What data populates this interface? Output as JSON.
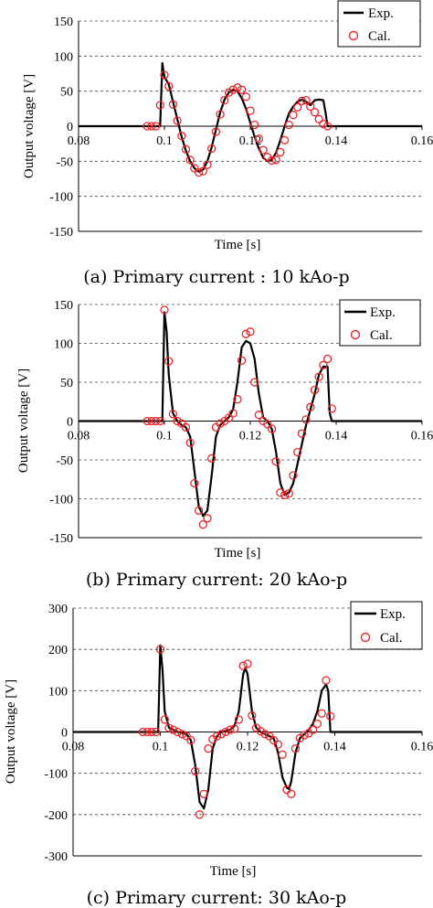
{
  "chart_data": [
    {
      "type": "line",
      "caption": "(a) Primary current : 10 kAo-p",
      "xlabel": "Time [s]",
      "ylabel": "Output voltage [V]",
      "xlim": [
        0.08,
        0.16
      ],
      "ylim": [
        -150,
        150
      ],
      "xticks": [
        0.08,
        0.1,
        0.12,
        0.14,
        0.16
      ],
      "xtick_labels": [
        "0.08",
        "0.1",
        "0.12",
        "0.14",
        "0.16"
      ],
      "yticks": [
        -150,
        -100,
        -50,
        0,
        50,
        100,
        150
      ],
      "ytick_labels": [
        "-150",
        "-100",
        "-50",
        "0",
        "50",
        "100",
        "150"
      ],
      "grid": "horizontal dashed",
      "legend_position": "top-right",
      "series": [
        {
          "name": "Exp.",
          "style": "line",
          "color": "#000000",
          "x": [
            0.08,
            0.099,
            0.0995,
            0.1,
            0.101,
            0.102,
            0.103,
            0.104,
            0.105,
            0.106,
            0.107,
            0.108,
            0.109,
            0.11,
            0.111,
            0.112,
            0.113,
            0.114,
            0.115,
            0.116,
            0.117,
            0.118,
            0.119,
            0.12,
            0.121,
            0.122,
            0.123,
            0.124,
            0.125,
            0.126,
            0.127,
            0.128,
            0.129,
            0.13,
            0.131,
            0.132,
            0.133,
            0.134,
            0.135,
            0.136,
            0.137,
            0.1375,
            0.138,
            0.16
          ],
          "y": [
            0,
            0,
            90,
            70,
            60,
            35,
            10,
            -15,
            -35,
            -50,
            -60,
            -65,
            -62,
            -50,
            -30,
            -5,
            20,
            38,
            48,
            52,
            50,
            40,
            25,
            5,
            -15,
            -32,
            -45,
            -50,
            -48,
            -38,
            -20,
            0,
            18,
            28,
            35,
            38,
            35,
            30,
            37,
            38,
            37,
            20,
            0,
            0
          ]
        },
        {
          "name": "Cal.",
          "style": "markers",
          "color": "#e8262a",
          "x": [
            0.096,
            0.097,
            0.098,
            0.099,
            0.1,
            0.101,
            0.102,
            0.103,
            0.104,
            0.105,
            0.106,
            0.107,
            0.108,
            0.109,
            0.11,
            0.111,
            0.112,
            0.113,
            0.114,
            0.115,
            0.116,
            0.117,
            0.118,
            0.119,
            0.12,
            0.121,
            0.122,
            0.123,
            0.124,
            0.125,
            0.126,
            0.127,
            0.128,
            0.129,
            0.13,
            0.131,
            0.132,
            0.133,
            0.134,
            0.135,
            0.136,
            0.137,
            0.138
          ],
          "y": [
            0,
            0,
            0,
            30,
            73,
            57,
            31,
            8,
            -14,
            -33,
            -48,
            -60,
            -66,
            -64,
            -55,
            -32,
            -8,
            17,
            37,
            48,
            52,
            55,
            52,
            42,
            22,
            2,
            -18,
            -34,
            -44,
            -49,
            -48,
            -37,
            -20,
            2,
            16,
            27,
            36,
            37,
            28,
            20,
            10,
            3,
            0
          ]
        }
      ]
    },
    {
      "type": "line",
      "caption": "(b) Primary current: 20 kAo-p",
      "xlabel": "Time [s]",
      "ylabel": "Output voltage [V]",
      "xlim": [
        0.08,
        0.16
      ],
      "ylim": [
        -150,
        150
      ],
      "xticks": [
        0.08,
        0.1,
        0.12,
        0.14,
        0.16
      ],
      "xtick_labels": [
        "0.08",
        "0.1",
        "0.12",
        "0.14",
        "0.16"
      ],
      "yticks": [
        -150,
        -100,
        -50,
        0,
        50,
        100,
        150
      ],
      "ytick_labels": [
        "-150",
        "-100",
        "-50",
        "0",
        "50",
        "100",
        "150"
      ],
      "grid": "horizontal dashed",
      "legend_position": "top-right",
      "series": [
        {
          "name": "Exp.",
          "style": "line",
          "color": "#000000",
          "x": [
            0.08,
            0.0995,
            0.1,
            0.1005,
            0.101,
            0.102,
            0.103,
            0.104,
            0.105,
            0.106,
            0.107,
            0.108,
            0.109,
            0.11,
            0.111,
            0.112,
            0.113,
            0.114,
            0.115,
            0.116,
            0.117,
            0.118,
            0.119,
            0.12,
            0.121,
            0.122,
            0.123,
            0.124,
            0.125,
            0.126,
            0.127,
            0.128,
            0.129,
            0.13,
            0.131,
            0.132,
            0.133,
            0.134,
            0.135,
            0.136,
            0.137,
            0.138,
            0.1385,
            0.139,
            0.16
          ],
          "y": [
            0,
            0,
            140,
            115,
            60,
            10,
            0,
            -5,
            -8,
            -20,
            -65,
            -110,
            -122,
            -115,
            -70,
            -20,
            -5,
            0,
            5,
            15,
            50,
            95,
            103,
            100,
            80,
            35,
            5,
            0,
            -10,
            -40,
            -80,
            -95,
            -92,
            -80,
            -55,
            -30,
            -5,
            15,
            35,
            60,
            70,
            70,
            10,
            0,
            0
          ]
        },
        {
          "name": "Cal.",
          "style": "markers",
          "color": "#e8262a",
          "x": [
            0.096,
            0.097,
            0.098,
            0.099,
            0.1,
            0.101,
            0.102,
            0.103,
            0.104,
            0.105,
            0.106,
            0.107,
            0.108,
            0.109,
            0.11,
            0.111,
            0.112,
            0.113,
            0.114,
            0.115,
            0.116,
            0.117,
            0.118,
            0.119,
            0.12,
            0.121,
            0.122,
            0.123,
            0.124,
            0.125,
            0.126,
            0.127,
            0.128,
            0.129,
            0.13,
            0.131,
            0.132,
            0.133,
            0.134,
            0.135,
            0.136,
            0.137,
            0.138,
            0.139
          ],
          "y": [
            0,
            0,
            0,
            0,
            143,
            77,
            9,
            0,
            -3,
            -8,
            -28,
            -80,
            -115,
            -133,
            -125,
            -48,
            -8,
            -3,
            0,
            4,
            10,
            28,
            78,
            112,
            115,
            50,
            8,
            0,
            -4,
            -10,
            -52,
            -92,
            -95,
            -93,
            -70,
            -40,
            -16,
            2,
            18,
            40,
            57,
            72,
            80,
            16
          ]
        }
      ]
    },
    {
      "type": "line",
      "caption": "(c) Primary current: 30 kAo-p",
      "xlabel": "Time [s]",
      "ylabel": "Output voltage [V]",
      "xlim": [
        0.08,
        0.16
      ],
      "ylim": [
        -300,
        300
      ],
      "xticks": [
        0.08,
        0.1,
        0.12,
        0.14,
        0.16
      ],
      "xtick_labels": [
        "0.08",
        "0.1",
        "0.12",
        "0.14",
        "0.16"
      ],
      "yticks": [
        -300,
        -200,
        -100,
        0,
        100,
        200,
        300
      ],
      "ytick_labels": [
        "-300",
        "-200",
        "-100",
        "0",
        "100",
        "200",
        "300"
      ],
      "grid": "horizontal dashed",
      "legend_position": "top-right",
      "series": [
        {
          "name": "Exp.",
          "style": "line",
          "color": "#000000",
          "x": [
            0.08,
            0.0995,
            0.1,
            0.1005,
            0.101,
            0.102,
            0.104,
            0.106,
            0.107,
            0.108,
            0.109,
            0.11,
            0.111,
            0.112,
            0.113,
            0.114,
            0.116,
            0.117,
            0.118,
            0.119,
            0.1195,
            0.12,
            0.121,
            0.122,
            0.123,
            0.124,
            0.126,
            0.127,
            0.128,
            0.129,
            0.1295,
            0.13,
            0.131,
            0.132,
            0.133,
            0.134,
            0.135,
            0.136,
            0.137,
            0.138,
            0.1385,
            0.139,
            0.16
          ],
          "y": [
            0,
            0,
            210,
            150,
            50,
            10,
            0,
            -5,
            -20,
            -80,
            -170,
            -185,
            -140,
            -40,
            -10,
            0,
            5,
            15,
            50,
            140,
            155,
            140,
            50,
            10,
            0,
            -5,
            -15,
            -50,
            -110,
            -135,
            -138,
            -120,
            -50,
            -15,
            -5,
            5,
            20,
            50,
            100,
            115,
            100,
            0,
            0
          ]
        },
        {
          "name": "Cal.",
          "style": "markers",
          "color": "#e8262a",
          "x": [
            0.096,
            0.097,
            0.098,
            0.099,
            0.1,
            0.101,
            0.102,
            0.103,
            0.104,
            0.105,
            0.106,
            0.107,
            0.108,
            0.109,
            0.11,
            0.111,
            0.112,
            0.113,
            0.114,
            0.115,
            0.116,
            0.117,
            0.118,
            0.119,
            0.12,
            0.121,
            0.122,
            0.123,
            0.124,
            0.125,
            0.126,
            0.127,
            0.128,
            0.129,
            0.13,
            0.131,
            0.132,
            0.133,
            0.134,
            0.135,
            0.136,
            0.137,
            0.138,
            0.139
          ],
          "y": [
            0,
            0,
            0,
            0,
            200,
            30,
            10,
            5,
            0,
            -5,
            -10,
            -20,
            -95,
            -200,
            -150,
            -40,
            -18,
            -10,
            -5,
            0,
            5,
            8,
            30,
            160,
            165,
            40,
            10,
            2,
            -5,
            -10,
            -20,
            -30,
            -55,
            -140,
            -150,
            -40,
            -15,
            -8,
            -3,
            5,
            20,
            45,
            125,
            38
          ]
        }
      ]
    }
  ]
}
